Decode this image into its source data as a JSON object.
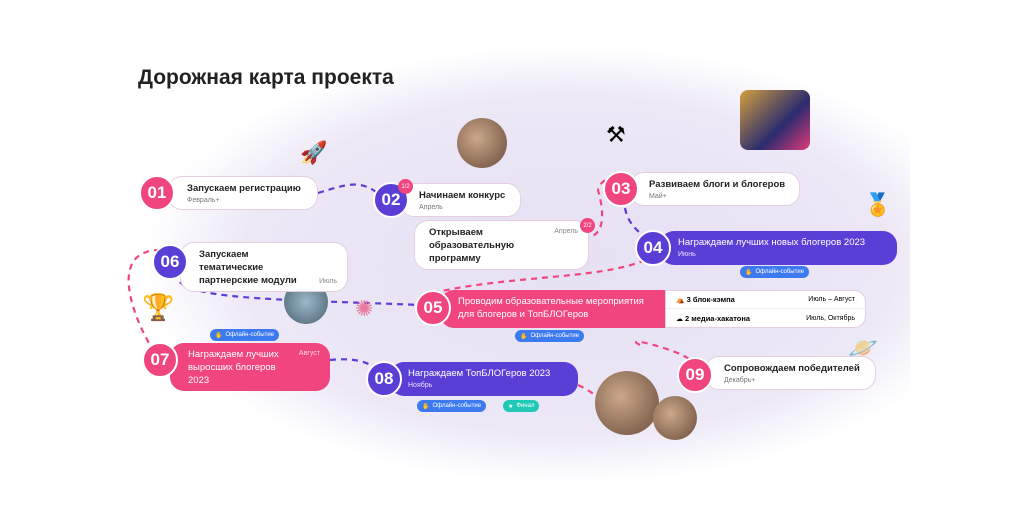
{
  "title": "Дорожная карта проекта",
  "colors": {
    "pink": "#f0457e",
    "purple": "#5a3fd7",
    "offline_pill": "#3d7af0",
    "final_pill": "#1fc9b6"
  },
  "steps": [
    {
      "num": "01",
      "title": "Запускаем регистрацию",
      "date": "Февраль+"
    },
    {
      "num": "02",
      "title": "Начинаем конкурс",
      "date": "Апрель",
      "badge": "1/2"
    },
    {
      "num": "",
      "title": "Открываем образовательную программу",
      "date": "Апрель",
      "badge": "2/2"
    },
    {
      "num": "03",
      "title": "Развиваем блоги и блогеров",
      "date": "Май+"
    },
    {
      "num": "04",
      "title": "Награждаем лучших новых блогеров 2023",
      "date": "Июнь",
      "pill": "Офлайн-событие"
    },
    {
      "num": "05",
      "title": "Проводим образовательные мероприятия для блогеров и ТопБЛОГеров",
      "pill": "Офлайн-событие",
      "events": [
        {
          "icon": "camp-icon",
          "label": "3 блок-кэмпа",
          "date": "Июль – Август"
        },
        {
          "icon": "brain-icon",
          "label": "2 медиа-хакатона",
          "date": "Июль, Октябрь"
        }
      ]
    },
    {
      "num": "06",
      "title": "Запускаем тематические партнерские модули",
      "date": "Июль"
    },
    {
      "num": "07",
      "title": "Награждаем лучших выросших блогеров 2023",
      "date": "Август",
      "pill": "Офлайн-событие"
    },
    {
      "num": "08",
      "title": "Награждаем ТопБЛОГеров 2023",
      "date": "Ноябрь",
      "pill": "Офлайн-событие",
      "pill2": "Финал"
    },
    {
      "num": "09",
      "title": "Сопровождаем победителей",
      "date": "Декабрь+"
    }
  ]
}
